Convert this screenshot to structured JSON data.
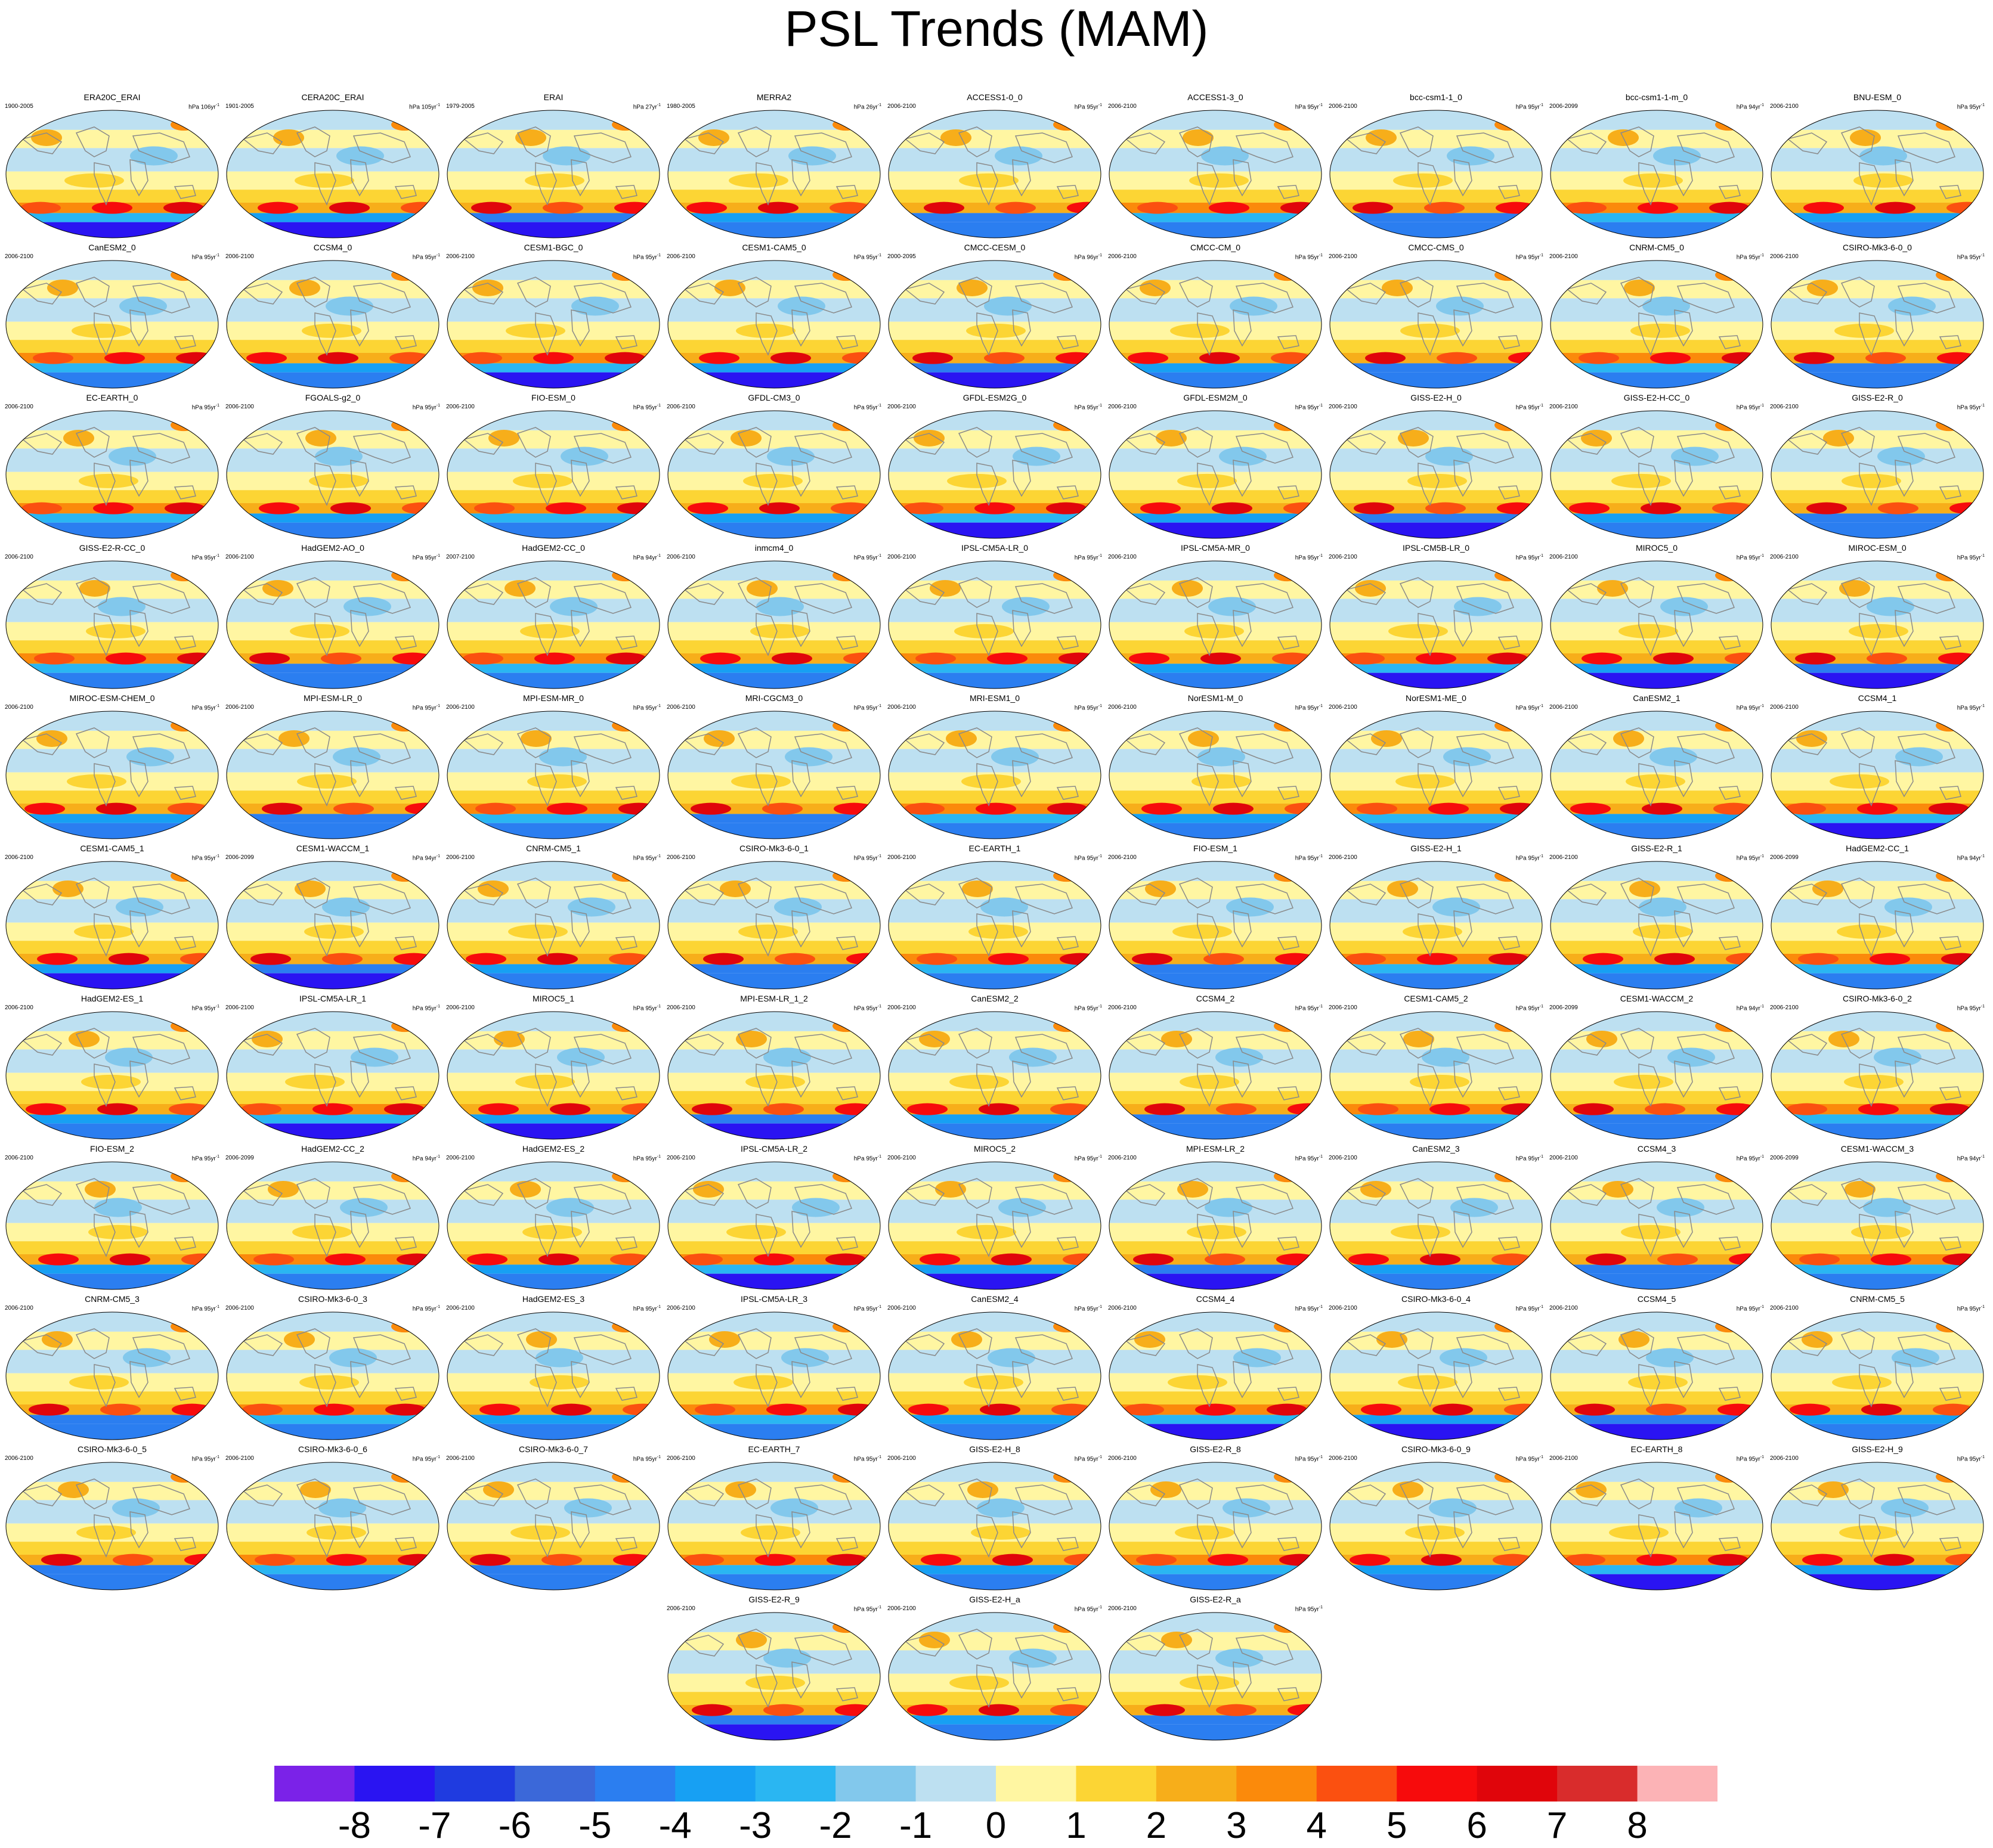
{
  "title": "PSL Trends (MAM)",
  "unit_label": "hPa",
  "colorbar": {
    "labels": [
      "-8",
      "-7",
      "-6",
      "-5",
      "-4",
      "-3",
      "-2",
      "-1",
      "0",
      "1",
      "2",
      "3",
      "4",
      "5",
      "6",
      "7",
      "8"
    ],
    "colors": [
      "#7b22e8",
      "#2a14f2",
      "#1f3be0",
      "#3b68d9",
      "#2b7ef0",
      "#17a0f3",
      "#2ab6f2",
      "#82c8ec",
      "#bde0f1",
      "#fff6a2",
      "#fcd534",
      "#f7ae1a",
      "#fb8a0b",
      "#fb5010",
      "#f70b0c",
      "#e0050b",
      "#d92c2c",
      "#fcb3b6"
    ]
  },
  "panels": [
    {
      "name": "ERA20C_ERAI",
      "years": "1900-2005",
      "per": "106yr"
    },
    {
      "name": "CERA20C_ERAI",
      "years": "1901-2005",
      "per": "105yr"
    },
    {
      "name": "ERAI",
      "years": "1979-2005",
      "per": "27yr"
    },
    {
      "name": "MERRA2",
      "years": "1980-2005",
      "per": "26yr"
    },
    {
      "name": "ACCESS1-0_0",
      "years": "2006-2100",
      "per": "95yr"
    },
    {
      "name": "ACCESS1-3_0",
      "years": "2006-2100",
      "per": "95yr"
    },
    {
      "name": "bcc-csm1-1_0",
      "years": "2006-2100",
      "per": "95yr"
    },
    {
      "name": "bcc-csm1-1-m_0",
      "years": "2006-2099",
      "per": "94yr"
    },
    {
      "name": "BNU-ESM_0",
      "years": "2006-2100",
      "per": "95yr"
    },
    {
      "name": "CanESM2_0",
      "years": "2006-2100",
      "per": "95yr"
    },
    {
      "name": "CCSM4_0",
      "years": "2006-2100",
      "per": "95yr"
    },
    {
      "name": "CESM1-BGC_0",
      "years": "2006-2100",
      "per": "95yr"
    },
    {
      "name": "CESM1-CAM5_0",
      "years": "2006-2100",
      "per": "95yr"
    },
    {
      "name": "CMCC-CESM_0",
      "years": "2000-2095",
      "per": "96yr"
    },
    {
      "name": "CMCC-CM_0",
      "years": "2006-2100",
      "per": "95yr"
    },
    {
      "name": "CMCC-CMS_0",
      "years": "2006-2100",
      "per": "95yr"
    },
    {
      "name": "CNRM-CM5_0",
      "years": "2006-2100",
      "per": "95yr"
    },
    {
      "name": "CSIRO-Mk3-6-0_0",
      "years": "2006-2100",
      "per": "95yr"
    },
    {
      "name": "EC-EARTH_0",
      "years": "2006-2100",
      "per": "95yr"
    },
    {
      "name": "FGOALS-g2_0",
      "years": "2006-2100",
      "per": "95yr"
    },
    {
      "name": "FIO-ESM_0",
      "years": "2006-2100",
      "per": "95yr"
    },
    {
      "name": "GFDL-CM3_0",
      "years": "2006-2100",
      "per": "95yr"
    },
    {
      "name": "GFDL-ESM2G_0",
      "years": "2006-2100",
      "per": "95yr"
    },
    {
      "name": "GFDL-ESM2M_0",
      "years": "2006-2100",
      "per": "95yr"
    },
    {
      "name": "GISS-E2-H_0",
      "years": "2006-2100",
      "per": "95yr"
    },
    {
      "name": "GISS-E2-H-CC_0",
      "years": "2006-2100",
      "per": "95yr"
    },
    {
      "name": "GISS-E2-R_0",
      "years": "2006-2100",
      "per": "95yr"
    },
    {
      "name": "GISS-E2-R-CC_0",
      "years": "2006-2100",
      "per": "95yr"
    },
    {
      "name": "HadGEM2-AO_0",
      "years": "2006-2100",
      "per": "95yr"
    },
    {
      "name": "HadGEM2-CC_0",
      "years": "2007-2100",
      "per": "94yr"
    },
    {
      "name": "inmcm4_0",
      "years": "2006-2100",
      "per": "95yr"
    },
    {
      "name": "IPSL-CM5A-LR_0",
      "years": "2006-2100",
      "per": "95yr"
    },
    {
      "name": "IPSL-CM5A-MR_0",
      "years": "2006-2100",
      "per": "95yr"
    },
    {
      "name": "IPSL-CM5B-LR_0",
      "years": "2006-2100",
      "per": "95yr"
    },
    {
      "name": "MIROC5_0",
      "years": "2006-2100",
      "per": "95yr"
    },
    {
      "name": "MIROC-ESM_0",
      "years": "2006-2100",
      "per": "95yr"
    },
    {
      "name": "MIROC-ESM-CHEM_0",
      "years": "2006-2100",
      "per": "95yr"
    },
    {
      "name": "MPI-ESM-LR_0",
      "years": "2006-2100",
      "per": "95yr"
    },
    {
      "name": "MPI-ESM-MR_0",
      "years": "2006-2100",
      "per": "95yr"
    },
    {
      "name": "MRI-CGCM3_0",
      "years": "2006-2100",
      "per": "95yr"
    },
    {
      "name": "MRI-ESM1_0",
      "years": "2006-2100",
      "per": "95yr"
    },
    {
      "name": "NorESM1-M_0",
      "years": "2006-2100",
      "per": "95yr"
    },
    {
      "name": "NorESM1-ME_0",
      "years": "2006-2100",
      "per": "95yr"
    },
    {
      "name": "CanESM2_1",
      "years": "2006-2100",
      "per": "95yr"
    },
    {
      "name": "CCSM4_1",
      "years": "2006-2100",
      "per": "95yr"
    },
    {
      "name": "CESM1-CAM5_1",
      "years": "2006-2100",
      "per": "95yr"
    },
    {
      "name": "CESM1-WACCM_1",
      "years": "2006-2099",
      "per": "94yr"
    },
    {
      "name": "CNRM-CM5_1",
      "years": "2006-2100",
      "per": "95yr"
    },
    {
      "name": "CSIRO-Mk3-6-0_1",
      "years": "2006-2100",
      "per": "95yr"
    },
    {
      "name": "EC-EARTH_1",
      "years": "2006-2100",
      "per": "95yr"
    },
    {
      "name": "FIO-ESM_1",
      "years": "2006-2100",
      "per": "95yr"
    },
    {
      "name": "GISS-E2-H_1",
      "years": "2006-2100",
      "per": "95yr"
    },
    {
      "name": "GISS-E2-R_1",
      "years": "2006-2100",
      "per": "95yr"
    },
    {
      "name": "HadGEM2-CC_1",
      "years": "2006-2099",
      "per": "94yr"
    },
    {
      "name": "HadGEM2-ES_1",
      "years": "2006-2100",
      "per": "95yr"
    },
    {
      "name": "IPSL-CM5A-LR_1",
      "years": "2006-2100",
      "per": "95yr"
    },
    {
      "name": "MIROC5_1",
      "years": "2006-2100",
      "per": "95yr"
    },
    {
      "name": "MPI-ESM-LR_1_2",
      "years": "2006-2100",
      "per": "95yr"
    },
    {
      "name": "CanESM2_2",
      "years": "2006-2100",
      "per": "95yr"
    },
    {
      "name": "CCSM4_2",
      "years": "2006-2100",
      "per": "95yr"
    },
    {
      "name": "CESM1-CAM5_2",
      "years": "2006-2100",
      "per": "95yr"
    },
    {
      "name": "CESM1-WACCM_2",
      "years": "2006-2099",
      "per": "94yr"
    },
    {
      "name": "CSIRO-Mk3-6-0_2",
      "years": "2006-2100",
      "per": "95yr"
    },
    {
      "name": "FIO-ESM_2",
      "years": "2006-2100",
      "per": "95yr"
    },
    {
      "name": "HadGEM2-CC_2",
      "years": "2006-2099",
      "per": "94yr"
    },
    {
      "name": "HadGEM2-ES_2",
      "years": "2006-2100",
      "per": "95yr"
    },
    {
      "name": "IPSL-CM5A-LR_2",
      "years": "2006-2100",
      "per": "95yr"
    },
    {
      "name": "MIROC5_2",
      "years": "2006-2100",
      "per": "95yr"
    },
    {
      "name": "MPI-ESM-LR_2",
      "years": "2006-2100",
      "per": "95yr"
    },
    {
      "name": "CanESM2_3",
      "years": "2006-2100",
      "per": "95yr"
    },
    {
      "name": "CCSM4_3",
      "years": "2006-2100",
      "per": "95yr"
    },
    {
      "name": "CESM1-WACCM_3",
      "years": "2006-2099",
      "per": "94yr"
    },
    {
      "name": "CNRM-CM5_3",
      "years": "2006-2100",
      "per": "95yr"
    },
    {
      "name": "CSIRO-Mk3-6-0_3",
      "years": "2006-2100",
      "per": "95yr"
    },
    {
      "name": "HadGEM2-ES_3",
      "years": "2006-2100",
      "per": "95yr"
    },
    {
      "name": "IPSL-CM5A-LR_3",
      "years": "2006-2100",
      "per": "95yr"
    },
    {
      "name": "CanESM2_4",
      "years": "2006-2100",
      "per": "95yr"
    },
    {
      "name": "CCSM4_4",
      "years": "2006-2100",
      "per": "95yr"
    },
    {
      "name": "CSIRO-Mk3-6-0_4",
      "years": "2006-2100",
      "per": "95yr"
    },
    {
      "name": "CCSM4_5",
      "years": "2006-2100",
      "per": "95yr"
    },
    {
      "name": "CNRM-CM5_5",
      "years": "2006-2100",
      "per": "95yr"
    },
    {
      "name": "CSIRO-Mk3-6-0_5",
      "years": "2006-2100",
      "per": "95yr"
    },
    {
      "name": "CSIRO-Mk3-6-0_6",
      "years": "2006-2100",
      "per": "95yr"
    },
    {
      "name": "CSIRO-Mk3-6-0_7",
      "years": "2006-2100",
      "per": "95yr"
    },
    {
      "name": "EC-EARTH_7",
      "years": "2006-2100",
      "per": "95yr"
    },
    {
      "name": "GISS-E2-H_8",
      "years": "2006-2100",
      "per": "95yr"
    },
    {
      "name": "GISS-E2-R_8",
      "years": "2006-2100",
      "per": "95yr"
    },
    {
      "name": "CSIRO-Mk3-6-0_9",
      "years": "2006-2100",
      "per": "95yr"
    },
    {
      "name": "EC-EARTH_8",
      "years": "2006-2100",
      "per": "95yr"
    },
    {
      "name": "GISS-E2-H_9",
      "years": "2006-2100",
      "per": "95yr"
    },
    {
      "name": "GISS-E2-R_9",
      "years": "2006-2100",
      "per": "95yr"
    },
    {
      "name": "GISS-E2-H_a",
      "years": "2006-2100",
      "per": "95yr"
    },
    {
      "name": "GISS-E2-R_a",
      "years": "2006-2100",
      "per": "95yr"
    }
  ]
}
